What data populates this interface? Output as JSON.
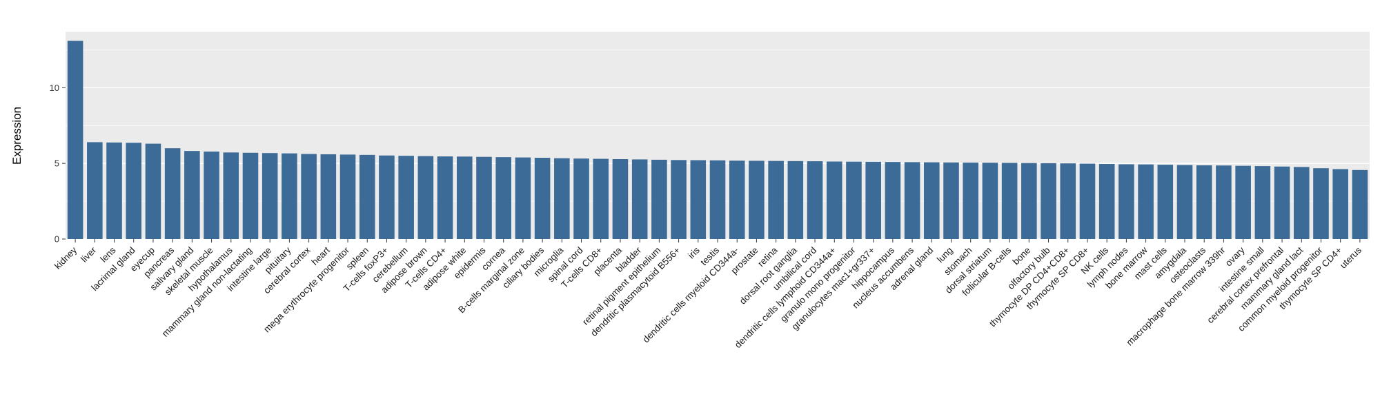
{
  "chart_data": {
    "type": "bar",
    "title": "",
    "xlabel": "",
    "ylabel": "Expression",
    "ylim": [
      0,
      13.7
    ],
    "yticks": [
      0,
      5,
      10
    ],
    "minor_ticks": [
      2.5,
      7.5,
      12.5
    ],
    "grid": "on",
    "legend": "none",
    "label_rotation_degrees": 45,
    "colors": {
      "bar": "#3d6b98",
      "panel": "#ebebeb",
      "gridline": "#ffffff",
      "tick": "#333333",
      "axis_text": "#333333"
    },
    "categories": [
      "kidney",
      "liver",
      "lens",
      "lacrimal gland",
      "eyecup",
      "pancreas",
      "salivary gland",
      "skeletal muscle",
      "hypothalamus",
      "mammary gland non-lactating",
      "intestine large",
      "pituitary",
      "cerebral cortex",
      "heart",
      "mega erythrocyte progenitor",
      "spleen",
      "T-cells foxP3+",
      "cerebellum",
      "adipose brown",
      "T-cells CD4+",
      "adipose white",
      "epidermis",
      "cornea",
      "B-cells marginal zone",
      "ciliary bodies",
      "microglia",
      "spinal cord",
      "T-cells CD8+",
      "placenta",
      "bladder",
      "retinal pigment epithelium",
      "dendritic plasmacytoid B556+",
      "iris",
      "testis",
      "dendritic cells myeloid CD344a-",
      "prostate",
      "retina",
      "dorsal root ganglia",
      "umbilical cord",
      "dendritic cells lymphoid CD344a+",
      "granulo mono progenitor",
      "granulocytes mac1+gr337+",
      "hippocampus",
      "nucleus accumbens",
      "adrenal gland",
      "lung",
      "stomach",
      "dorsal striatum",
      "follicular B-cells",
      "bone",
      "olfactory bulb",
      "thymocyte DP CD4+CD8+",
      "thymocyte SP CD8+",
      "NK cells",
      "lymph nodes",
      "bone marrow",
      "mast cells",
      "amygdala",
      "osteoclasts",
      "macrophage bone marrow 339hr",
      "ovary",
      "intestine small",
      "cerebral cortex prefrontal",
      "mammary gland lact",
      "common myeloid progenitor",
      "thymocyte SP CD4+",
      "uterus"
    ],
    "values": [
      13.1,
      6.4,
      6.38,
      6.36,
      6.3,
      6.0,
      5.82,
      5.78,
      5.72,
      5.7,
      5.68,
      5.66,
      5.62,
      5.6,
      5.58,
      5.56,
      5.52,
      5.5,
      5.48,
      5.46,
      5.45,
      5.43,
      5.41,
      5.39,
      5.37,
      5.34,
      5.32,
      5.3,
      5.28,
      5.26,
      5.24,
      5.22,
      5.21,
      5.2,
      5.18,
      5.17,
      5.16,
      5.15,
      5.14,
      5.12,
      5.11,
      5.1,
      5.09,
      5.08,
      5.07,
      5.06,
      5.05,
      5.04,
      5.03,
      5.02,
      5.01,
      5.0,
      4.98,
      4.96,
      4.94,
      4.93,
      4.91,
      4.89,
      4.87,
      4.86,
      4.84,
      4.82,
      4.79,
      4.76,
      4.68,
      4.62,
      4.56
    ]
  }
}
